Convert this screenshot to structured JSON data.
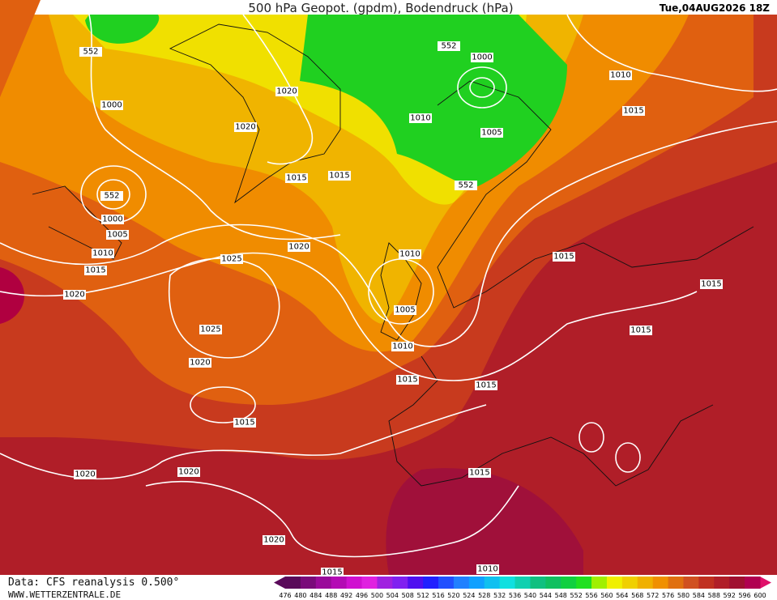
{
  "header": {
    "title": "500 hPa Geopot. (gpdm), Bodendruck (hPa)",
    "date": "Tue,04AUG2026 18Z"
  },
  "footer": {
    "source": "Data: CFS reanalysis 0.500°",
    "site": "WWW.WETTERZENTRALE.DE"
  },
  "map": {
    "isobar_labels": [
      "552",
      "552",
      "1000",
      "1010",
      "1020",
      "1000",
      "1015",
      "1020",
      "1010",
      "1005",
      "1015",
      "1015",
      "552",
      "552",
      "1000",
      "1005",
      "1010",
      "1015",
      "1020",
      "1025",
      "1010",
      "1015",
      "1015",
      "1020",
      "1005",
      "1025",
      "1015",
      "1010",
      "1020",
      "1015",
      "1015",
      "1015",
      "1015",
      "1020",
      "1020",
      "1020",
      "1010",
      "1015"
    ]
  },
  "colorbar": {
    "labels": [
      476,
      480,
      484,
      488,
      492,
      496,
      500,
      504,
      508,
      512,
      516,
      520,
      524,
      528,
      532,
      536,
      540,
      544,
      548,
      552,
      556,
      560,
      564,
      568,
      572,
      576,
      580,
      584,
      588,
      592,
      596,
      600
    ],
    "colors": [
      "#5a0a5a",
      "#7a0a7a",
      "#9a0a9a",
      "#b40ab4",
      "#d010d0",
      "#e020e0",
      "#a020e0",
      "#8020f0",
      "#5010f0",
      "#2020ff",
      "#2050ff",
      "#2080ff",
      "#10a0ff",
      "#10c0f0",
      "#10e0e0",
      "#10d0b0",
      "#10c080",
      "#10c060",
      "#10d040",
      "#20e020",
      "#a0f000",
      "#f0f000",
      "#f0d000",
      "#f0b000",
      "#f09000",
      "#e07010",
      "#d05020",
      "#c03020",
      "#b01e28",
      "#a01030",
      "#b00050"
    ]
  }
}
